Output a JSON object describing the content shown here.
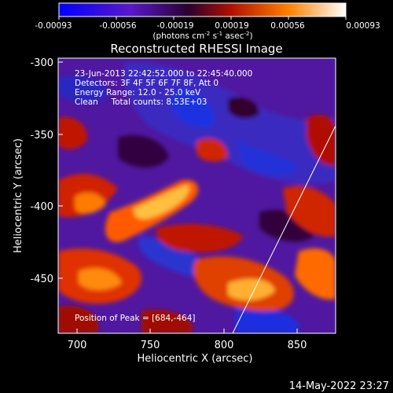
{
  "colorbar": {
    "ticks": [
      "-0.00093",
      "-0.00056",
      "-0.00019",
      "0.00019",
      "0.00056",
      "0.00093"
    ],
    "units_prefix": "(photons cm",
    "units_exp1": "-2",
    "units_mid": " s",
    "units_exp2": "-1",
    "units_end": " asec",
    "units_exp3": "-2",
    "units_close": ")"
  },
  "title": "Reconstructed RHESSI Image",
  "info": {
    "line1": "23-Jun-2013 22:42:52.000 to 22:45:40.000",
    "line2": "Detectors: 3F 4F 5F 6F 7F 8F, Att 0",
    "line3": "Energy Range: 12.0 - 25.0 keV",
    "line4": "Clean     Total counts: 8.53E+03"
  },
  "peak_text": "Position of Peak = [684,-464]",
  "axes": {
    "xlabel": "Heliocentric X (arcsec)",
    "ylabel": "Heliocentric Y (arcsec)",
    "xticks": [
      "700",
      "750",
      "800",
      "850"
    ],
    "yticks": [
      "-300",
      "-350",
      "-400",
      "-450"
    ]
  },
  "footer_timestamp": "14-May-2022 23:27",
  "colors": {
    "background": "#000000",
    "low": "#1a20d0",
    "mid": "#6a1aa8",
    "high": "#ff6a00",
    "peak": "#fff080"
  }
}
